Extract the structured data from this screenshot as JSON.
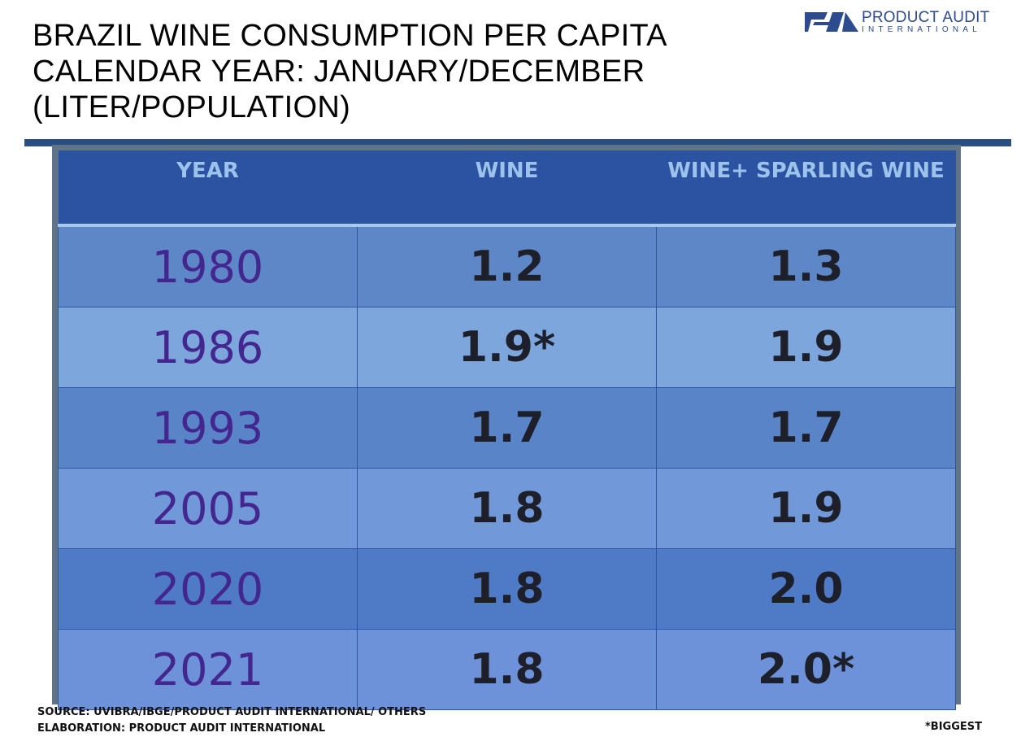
{
  "title": {
    "line1": "BRAZIL WINE CONSUMPTION PER CAPITA",
    "line2": "CALENDAR YEAR: JANUARY/DECEMBER",
    "line3": "(LITER/POPULATION)"
  },
  "logo": {
    "name": "PRODUCT AUDIT",
    "sub": "INTERNATIONAL"
  },
  "colors": {
    "header_bg": "#2b53a2",
    "header_text": "#9dc3ec",
    "year_text": "#44268f",
    "value_text": "#1d1f2a",
    "rule": "#294f82"
  },
  "chart_data": {
    "type": "table",
    "columns": [
      "YEAR",
      "WINE",
      "WINE+ SPARLING WINE"
    ],
    "rows": [
      {
        "year": "1980",
        "wine": "1.2",
        "wine_sparkling": "1.3"
      },
      {
        "year": "1986",
        "wine": "1.9*",
        "wine_sparkling": "1.9"
      },
      {
        "year": "1993",
        "wine": "1.7",
        "wine_sparkling": "1.7"
      },
      {
        "year": "2005",
        "wine": "1.8",
        "wine_sparkling": "1.9"
      },
      {
        "year": "2020",
        "wine": "1.8",
        "wine_sparkling": "2.0"
      },
      {
        "year": "2021",
        "wine": "1.8",
        "wine_sparkling": "2.0*"
      }
    ]
  },
  "footer": {
    "source": "SOURCE: UVIBRA/IBGE/PRODUCT AUDIT INTERNATIONAL/ OTHERS",
    "elaboration": "ELABORATION: PRODUCT AUDIT INTERNATIONAL",
    "note": "*BIGGEST"
  }
}
